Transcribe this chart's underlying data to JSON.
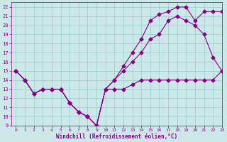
{
  "background_color": "#cce8e8",
  "line_color": "#880088",
  "grid_color": "#99cccc",
  "xlabel": "Windchill (Refroidissement éolien,°C)",
  "xlim": [
    -0.5,
    23
  ],
  "ylim": [
    9,
    22.5
  ],
  "xticks": [
    0,
    1,
    2,
    3,
    4,
    5,
    6,
    7,
    8,
    9,
    10,
    11,
    12,
    13,
    14,
    15,
    16,
    17,
    18,
    19,
    20,
    21,
    22,
    23
  ],
  "yticks": [
    9,
    10,
    11,
    12,
    13,
    14,
    15,
    16,
    17,
    18,
    19,
    20,
    21,
    22
  ],
  "series": [
    {
      "x": [
        0,
        1,
        2,
        3,
        4,
        5,
        6,
        7,
        8,
        9,
        10,
        11,
        12,
        13,
        14,
        15,
        16,
        17,
        18,
        19,
        20,
        21,
        22,
        23
      ],
      "y": [
        15,
        14,
        12.5,
        13,
        13,
        13,
        11.5,
        10.5,
        10,
        9,
        13,
        13,
        13,
        13.5,
        14,
        14,
        14,
        14,
        14,
        14,
        14,
        14,
        14,
        15
      ]
    },
    {
      "x": [
        0,
        1,
        2,
        3,
        4,
        5,
        6,
        7,
        8,
        9,
        10,
        11,
        12,
        13,
        14,
        15,
        16,
        17,
        18,
        19,
        20,
        21,
        22,
        23
      ],
      "y": [
        15,
        14,
        12.5,
        13,
        13,
        13,
        11.5,
        10.5,
        10,
        9,
        13,
        14,
        15,
        16,
        17,
        18.5,
        19,
        20.5,
        21,
        20.5,
        20,
        19,
        16.5,
        15
      ]
    },
    {
      "x": [
        0,
        1,
        2,
        3,
        4,
        5,
        6,
        7,
        8,
        9,
        10,
        11,
        12,
        13,
        14,
        15,
        16,
        17,
        18,
        19,
        20,
        21,
        22,
        23
      ],
      "y": [
        15,
        14,
        12.5,
        13,
        13,
        13,
        11.5,
        10.5,
        10,
        9,
        13,
        14,
        15.5,
        17,
        18.5,
        20.5,
        21.2,
        21.5,
        22,
        22,
        20.5,
        21.5,
        21.5,
        21.5
      ]
    }
  ],
  "marker": "D",
  "markersize": 2.5,
  "linewidth": 0.8
}
